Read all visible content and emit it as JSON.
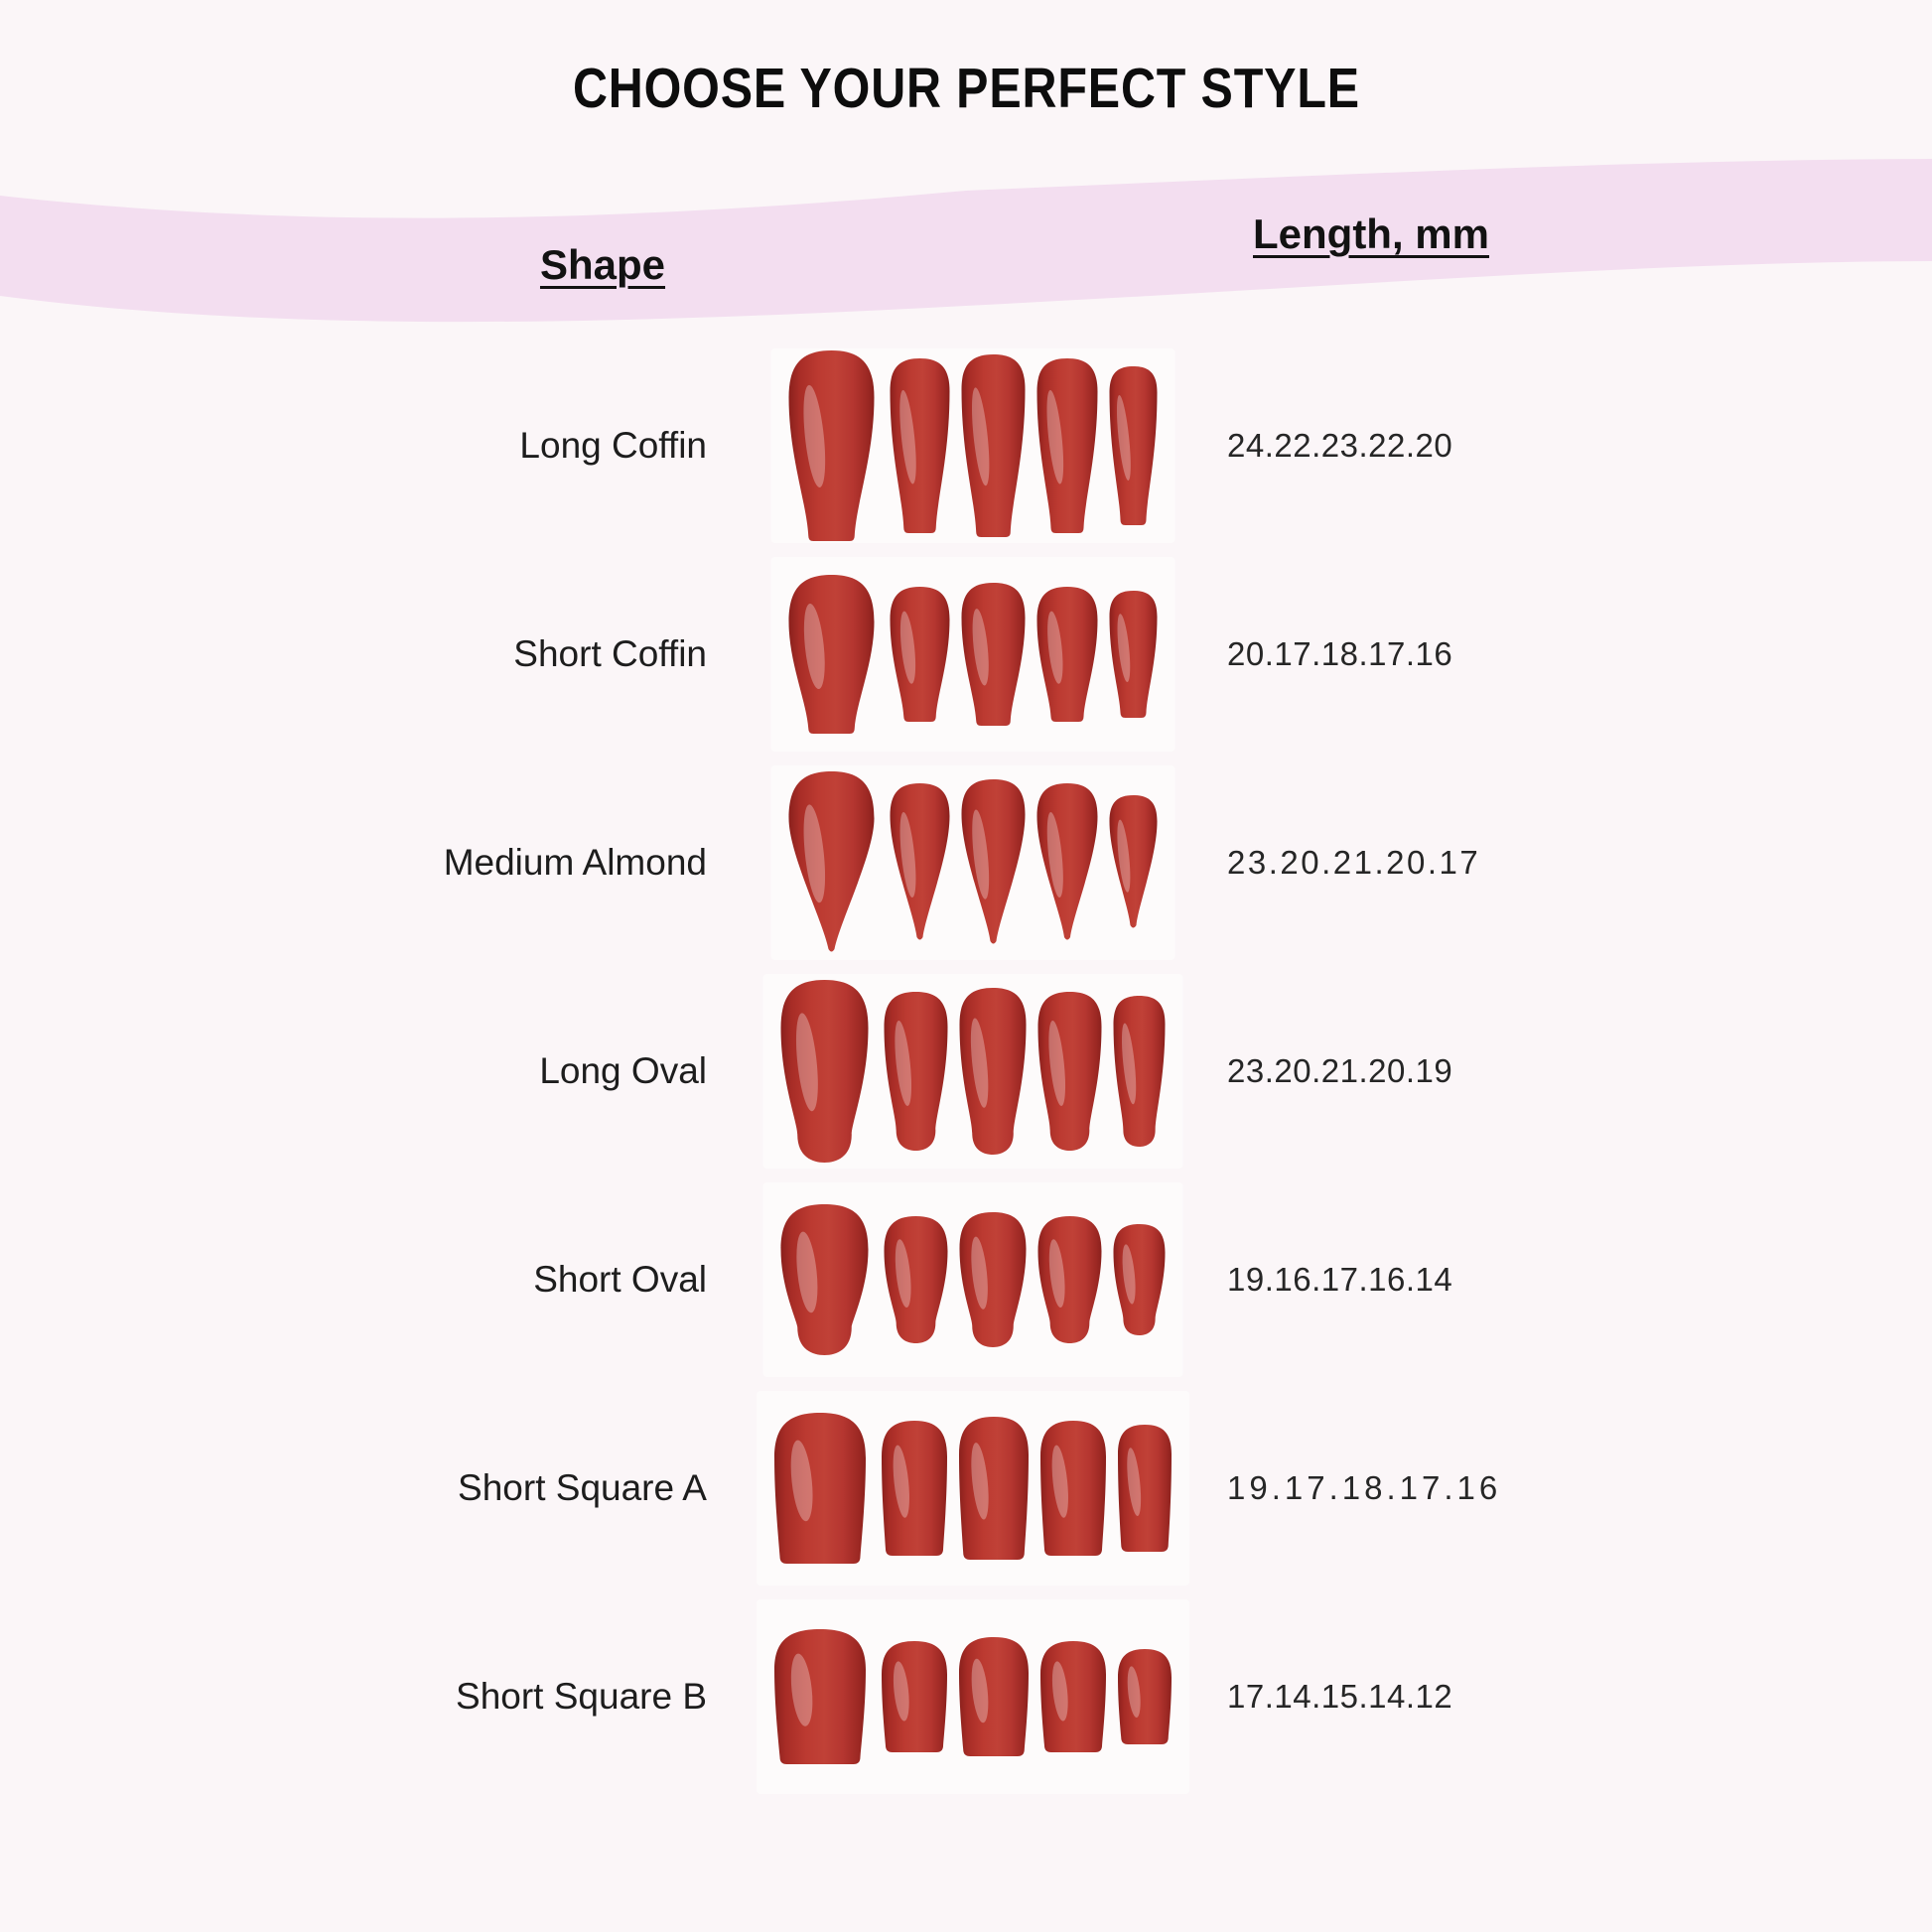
{
  "page_title": "CHOOSE YOUR PERFECT STYLE",
  "colors": {
    "background": "#fbf6f8",
    "wave_band": "#f3def0",
    "photo_background": "#fdfbfb",
    "nail_red_main": "#bc3a31",
    "nail_red_dark": "#8a201c",
    "text": "#1c1c1c"
  },
  "chart_data": {
    "type": "table",
    "title": "CHOOSE YOUR PERFECT STYLE",
    "columns": [
      "Shape",
      "Length, mm"
    ],
    "rows": [
      {
        "shape": "Long Coffin",
        "lengths": "24.22.23.22.20",
        "lengths_mm": [
          24,
          22,
          23,
          22,
          20
        ],
        "nail_type": "coffin"
      },
      {
        "shape": "Short Coffin",
        "lengths": "20.17.18.17.16",
        "lengths_mm": [
          20,
          17,
          18,
          17,
          16
        ],
        "nail_type": "coffin"
      },
      {
        "shape": "Medium Almond",
        "lengths": "23.20.21.20.17",
        "lengths_mm": [
          23,
          20,
          21,
          20,
          17
        ],
        "nail_type": "almond"
      },
      {
        "shape": "Long Oval",
        "lengths": "23.20.21.20.19",
        "lengths_mm": [
          23,
          20,
          21,
          20,
          19
        ],
        "nail_type": "oval"
      },
      {
        "shape": "Short Oval",
        "lengths": "19.16.17.16.14",
        "lengths_mm": [
          19,
          16,
          17,
          16,
          14
        ],
        "nail_type": "oval"
      },
      {
        "shape": "Short Square A",
        "lengths": "19.17.18.17.16",
        "lengths_mm": [
          19,
          17,
          18,
          17,
          16
        ],
        "nail_type": "square"
      },
      {
        "shape": "Short Square B",
        "lengths": "17.14.15.14.12",
        "lengths_mm": [
          17,
          14,
          15,
          14,
          12
        ],
        "nail_type": "square"
      }
    ]
  }
}
